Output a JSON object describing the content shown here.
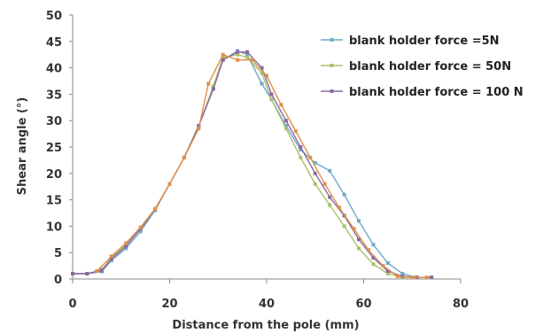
{
  "chart_data": {
    "type": "line",
    "title": "",
    "xlabel": "Distance from the pole (mm)",
    "ylabel": "Shear angle (°)",
    "xlim": [
      0,
      80
    ],
    "ylim": [
      0,
      50
    ],
    "xticks": [
      0,
      20,
      40,
      60,
      80
    ],
    "yticks": [
      0,
      5,
      10,
      15,
      20,
      25,
      30,
      35,
      40,
      45,
      50
    ],
    "grid": false,
    "legend_position": "top-right",
    "series": [
      {
        "name": "blank holder force =5N",
        "color": "#6fa8c8",
        "x": [
          0,
          3,
          6,
          8,
          11,
          14,
          17,
          20,
          23,
          26,
          29,
          31,
          34,
          36,
          39,
          41,
          44,
          47,
          50,
          53,
          56,
          59,
          62,
          65,
          68,
          71,
          74
        ],
        "y": [
          1,
          1,
          1.4,
          3.5,
          5.8,
          9,
          13,
          18,
          23,
          29,
          36,
          41.5,
          43.2,
          42.5,
          37,
          34,
          29,
          24.5,
          22,
          20.5,
          16,
          11,
          6.5,
          3,
          1,
          0.3,
          0.3
        ]
      },
      {
        "name": "blank holder force = 50N",
        "color": "#a8c26a",
        "x": [
          0,
          3,
          6,
          8,
          11,
          14,
          17,
          20,
          23,
          26,
          29,
          31,
          34,
          36,
          39,
          41,
          44,
          47,
          50,
          53,
          56,
          59,
          62,
          65,
          68,
          71,
          74
        ],
        "y": [
          1,
          1,
          1.8,
          4,
          6.5,
          9.5,
          13.2,
          18,
          23,
          29,
          36.5,
          42,
          42.5,
          42,
          39,
          34,
          28.5,
          23,
          18,
          14,
          10,
          5.8,
          2.8,
          1,
          0.3,
          0.3,
          0.3
        ]
      },
      {
        "name": "blank holder force = 100 N",
        "color": "#8a6aa0",
        "x": [
          0,
          3,
          6,
          8,
          11,
          14,
          17,
          20,
          23,
          26,
          29,
          31,
          34,
          36,
          39,
          41,
          44,
          47,
          50,
          53,
          56,
          59,
          62,
          65,
          68,
          71,
          74
        ],
        "y": [
          1,
          1,
          1.6,
          3.8,
          6.2,
          9.5,
          13.2,
          18,
          23,
          29,
          36,
          41.5,
          43,
          43,
          40,
          35,
          30,
          25,
          20,
          15.5,
          12,
          7.5,
          4,
          1.5,
          0.5,
          0.3,
          0.3
        ]
      },
      {
        "name": "",
        "color": "#e0904a",
        "x": [
          5,
          8,
          11,
          14,
          17,
          20,
          23,
          26,
          28,
          31,
          34,
          37,
          40,
          43,
          46,
          49,
          52,
          55,
          58,
          61,
          64,
          67,
          70,
          73
        ],
        "y": [
          1.5,
          4.3,
          6.8,
          9.8,
          13.3,
          18,
          23,
          28.5,
          37,
          42.5,
          41.5,
          41.5,
          38.5,
          33,
          28,
          23,
          18,
          13.5,
          9.5,
          5.5,
          2.5,
          0.5,
          0.3,
          0.3
        ]
      }
    ]
  }
}
